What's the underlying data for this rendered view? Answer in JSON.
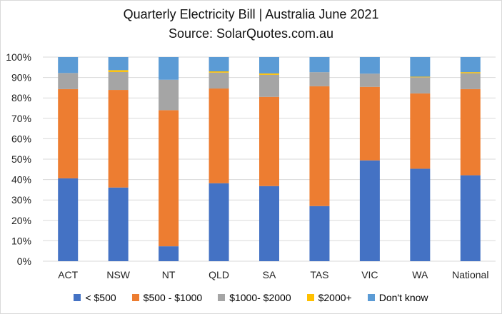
{
  "chart_data": {
    "type": "bar",
    "stacked": true,
    "title": "Quarterly Electricity Bill | Australia June 2021",
    "subtitle": "Source: SolarQuotes.com.au",
    "xlabel": "",
    "ylabel": "",
    "ylim": [
      0,
      100
    ],
    "y_ticks": [
      "0%",
      "10%",
      "20%",
      "30%",
      "40%",
      "50%",
      "60%",
      "70%",
      "80%",
      "90%",
      "100%"
    ],
    "grid": true,
    "legend_position": "bottom",
    "categories": [
      "ACT",
      "NSW",
      "NT",
      "QLD",
      "SA",
      "TAS",
      "VIC",
      "WA",
      "National"
    ],
    "series": [
      {
        "name": "< $500",
        "color": "#4472c4",
        "values": [
          40.6,
          36.1,
          7.3,
          38.2,
          36.8,
          27.0,
          49.4,
          45.3,
          42.1
        ]
      },
      {
        "name": "$500 - $1000",
        "color": "#ed7d31",
        "values": [
          43.7,
          47.8,
          66.7,
          46.4,
          43.7,
          58.7,
          36.0,
          36.9,
          42.2
        ]
      },
      {
        "name": "$1000- $2000",
        "color": "#a5a5a5",
        "values": [
          7.9,
          8.8,
          14.9,
          7.8,
          10.8,
          6.9,
          6.5,
          7.9,
          7.8
        ]
      },
      {
        "name": "$2000+",
        "color": "#ffc000",
        "values": [
          0.0,
          0.9,
          0.0,
          0.6,
          0.7,
          0.0,
          0.0,
          0.3,
          0.5
        ]
      },
      {
        "name": "Don't know",
        "color": "#5b9bd5",
        "values": [
          7.8,
          6.4,
          11.1,
          7.0,
          8.0,
          7.4,
          8.1,
          9.6,
          7.4
        ]
      }
    ]
  }
}
